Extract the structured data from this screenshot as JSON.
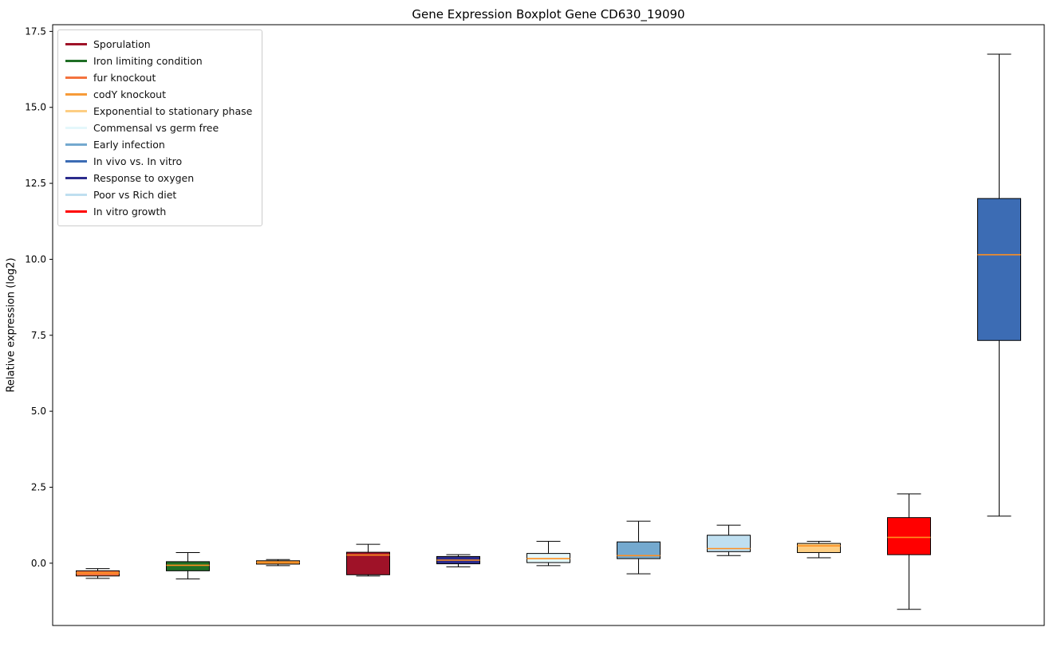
{
  "chart_data": {
    "type": "boxplot",
    "title": "Gene Expression Boxplot Gene CD630_19090",
    "ylabel": "Relative expression (log2)",
    "xlabel": "",
    "ylim": [
      -2.05,
      17.72
    ],
    "yticks": [
      0,
      2.5,
      5,
      7.5,
      10,
      12.5,
      15,
      17.5
    ],
    "grid": false,
    "legend_position": "upper left",
    "median_color": "#ff8f1f",
    "box_edge_color": "#000000",
    "legend": [
      {
        "label": "Sporulation",
        "color": "#9f1228"
      },
      {
        "label": "Iron limiting condition",
        "color": "#1f6e25"
      },
      {
        "label": "fur knockout",
        "color": "#f4733e"
      },
      {
        "label": "codY knockout",
        "color": "#f79b38"
      },
      {
        "label": "Exponential to stationary phase",
        "color": "#fdce83"
      },
      {
        "label": "Commensal vs germ free",
        "color": "#e4f7fb"
      },
      {
        "label": "Early infection",
        "color": "#74a9cf"
      },
      {
        "label": "In vivo vs. In vitro",
        "color": "#3c6cb4"
      },
      {
        "label": "Response to oxygen",
        "color": "#2b2b8c"
      },
      {
        "label": "Poor vs Rich diet",
        "color": "#bfdff0"
      },
      {
        "label": "In vitro growth",
        "color": "#ff0000"
      }
    ],
    "boxes": [
      {
        "label": "fur knockout",
        "color": "#f4733e",
        "whislo": -0.5,
        "q1": -0.42,
        "med": -0.32,
        "q3": -0.25,
        "whishi": -0.18
      },
      {
        "label": "Iron limiting condition",
        "color": "#1f6e25",
        "whislo": -0.52,
        "q1": -0.25,
        "med": -0.07,
        "q3": 0.05,
        "whishi": 0.35
      },
      {
        "label": "codY knockout",
        "color": "#f79b38",
        "whislo": -0.08,
        "q1": -0.03,
        "med": 0.03,
        "q3": 0.08,
        "whishi": 0.12
      },
      {
        "label": "Sporulation",
        "color": "#9f1228",
        "whislo": -0.42,
        "q1": -0.38,
        "med": 0.27,
        "q3": 0.36,
        "whishi": 0.62
      },
      {
        "label": "Response to oxygen",
        "color": "#2b2b8c",
        "whislo": -0.12,
        "q1": -0.02,
        "med": 0.1,
        "q3": 0.22,
        "whishi": 0.28
      },
      {
        "label": "Commensal vs germ free",
        "color": "#e4f7fb",
        "whislo": -0.08,
        "q1": 0.02,
        "med": 0.15,
        "q3": 0.32,
        "whishi": 0.72
      },
      {
        "label": "Early infection",
        "color": "#74a9cf",
        "whislo": -0.35,
        "q1": 0.15,
        "med": 0.25,
        "q3": 0.7,
        "whishi": 1.38
      },
      {
        "label": "Poor vs Rich diet",
        "color": "#bfdff0",
        "whislo": 0.25,
        "q1": 0.38,
        "med": 0.48,
        "q3": 0.92,
        "whishi": 1.25
      },
      {
        "label": "Exponential to stationary phase",
        "color": "#fdce83",
        "whislo": 0.18,
        "q1": 0.35,
        "med": 0.57,
        "q3": 0.65,
        "whishi": 0.72
      },
      {
        "label": "In vitro growth",
        "color": "#ff0000",
        "whislo": -1.52,
        "q1": 0.28,
        "med": 0.85,
        "q3": 1.5,
        "whishi": 2.28
      },
      {
        "label": "In vivo vs. In vitro",
        "color": "#3c6cb4",
        "whislo": 1.55,
        "q1": 7.33,
        "med": 10.15,
        "q3": 12.0,
        "whishi": 16.75
      }
    ]
  }
}
